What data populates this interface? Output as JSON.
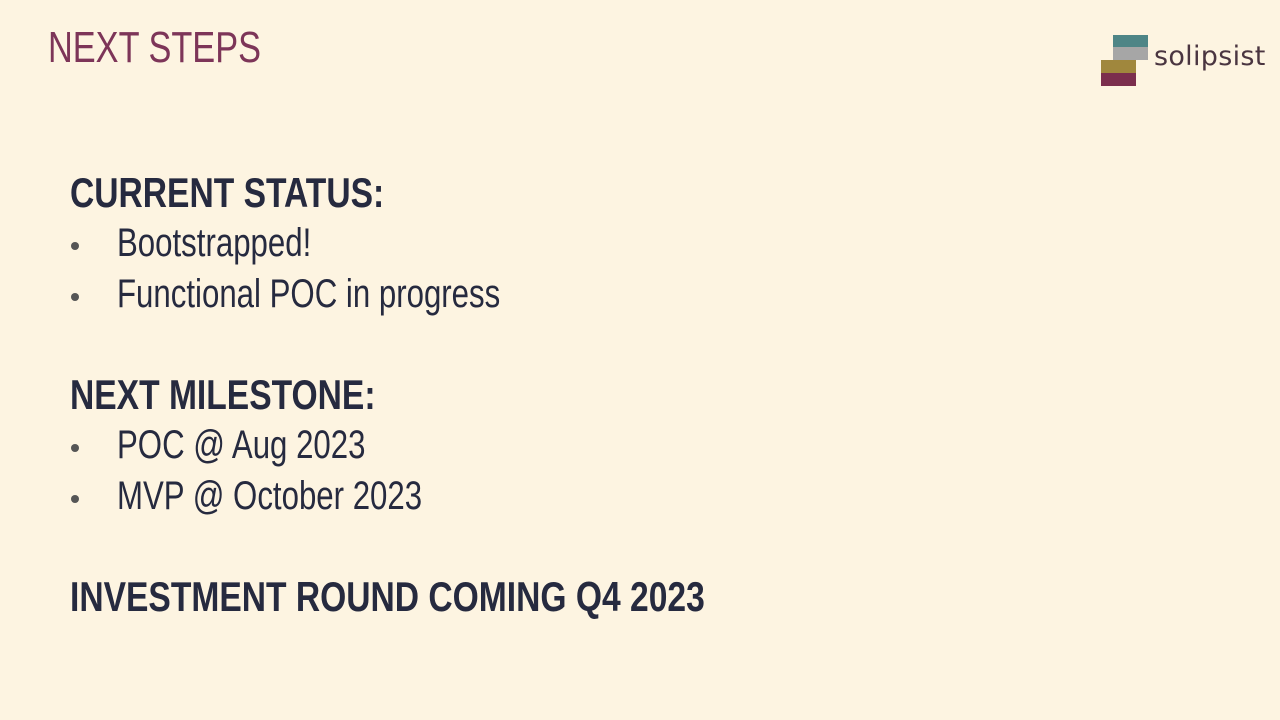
{
  "slide": {
    "title": "NEXT STEPS"
  },
  "logo": {
    "text": "solipsist",
    "mark_colors": [
      "#4e8586",
      "#a6a6a6",
      "#a0873d",
      "#7b2e4d"
    ]
  },
  "sections": [
    {
      "heading": "CURRENT STATUS:",
      "bullets": [
        "Bootstrapped!",
        "Functional POC in progress"
      ]
    },
    {
      "heading": "NEXT MILESTONE:",
      "bullets": [
        "POC @ Aug 2023",
        "MVP @ October 2023"
      ]
    },
    {
      "heading": "INVESTMENT ROUND COMING Q4 2023",
      "bullets": []
    }
  ],
  "colors": {
    "background": "#fdf4e1",
    "title": "#7d3558",
    "body_text": "#262a3f",
    "bullet": "#555555"
  }
}
